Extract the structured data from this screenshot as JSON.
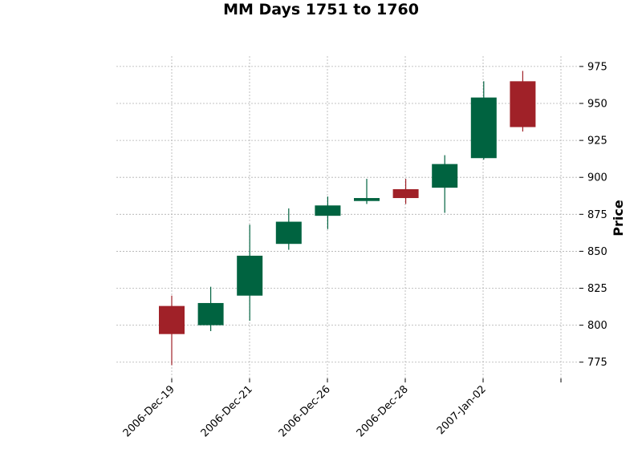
{
  "chart_data": {
    "type": "candlestick",
    "title": "MM Days 1751 to 1760",
    "xlabel": "",
    "ylabel": "Price",
    "ylim": [
      764,
      982
    ],
    "yticks": [
      775,
      800,
      825,
      850,
      875,
      900,
      925,
      950,
      975
    ],
    "grid": true,
    "xtick_labels": [
      "2006-Dec-19",
      "2006-Dec-21",
      "2006-Dec-26",
      "2006-Dec-28",
      "2007-Jan-02"
    ],
    "colors": {
      "up": "#006340",
      "down": "#a02128",
      "grid": "#b0b0b0"
    },
    "candles": [
      {
        "date": "2006-Dec-19",
        "open": 813,
        "high": 820,
        "low": 773,
        "close": 794
      },
      {
        "date": "2006-Dec-20",
        "open": 800,
        "high": 826,
        "low": 796,
        "close": 815
      },
      {
        "date": "2006-Dec-21",
        "open": 820,
        "high": 868,
        "low": 803,
        "close": 847
      },
      {
        "date": "2006-Dec-22",
        "open": 855,
        "high": 879,
        "low": 851,
        "close": 870
      },
      {
        "date": "2006-Dec-26",
        "open": 874,
        "high": 887,
        "low": 865,
        "close": 881
      },
      {
        "date": "2006-Dec-27",
        "open": 884,
        "high": 899,
        "low": 882,
        "close": 886
      },
      {
        "date": "2006-Dec-28",
        "open": 892,
        "high": 899,
        "low": 882,
        "close": 886
      },
      {
        "date": "2006-Dec-29",
        "open": 893,
        "high": 915,
        "low": 876,
        "close": 909
      },
      {
        "date": "2007-Jan-02",
        "open": 913,
        "high": 965,
        "low": 912,
        "close": 954
      },
      {
        "date": "2007-Jan-03",
        "open": 965,
        "high": 972,
        "low": 931,
        "close": 934
      }
    ]
  }
}
